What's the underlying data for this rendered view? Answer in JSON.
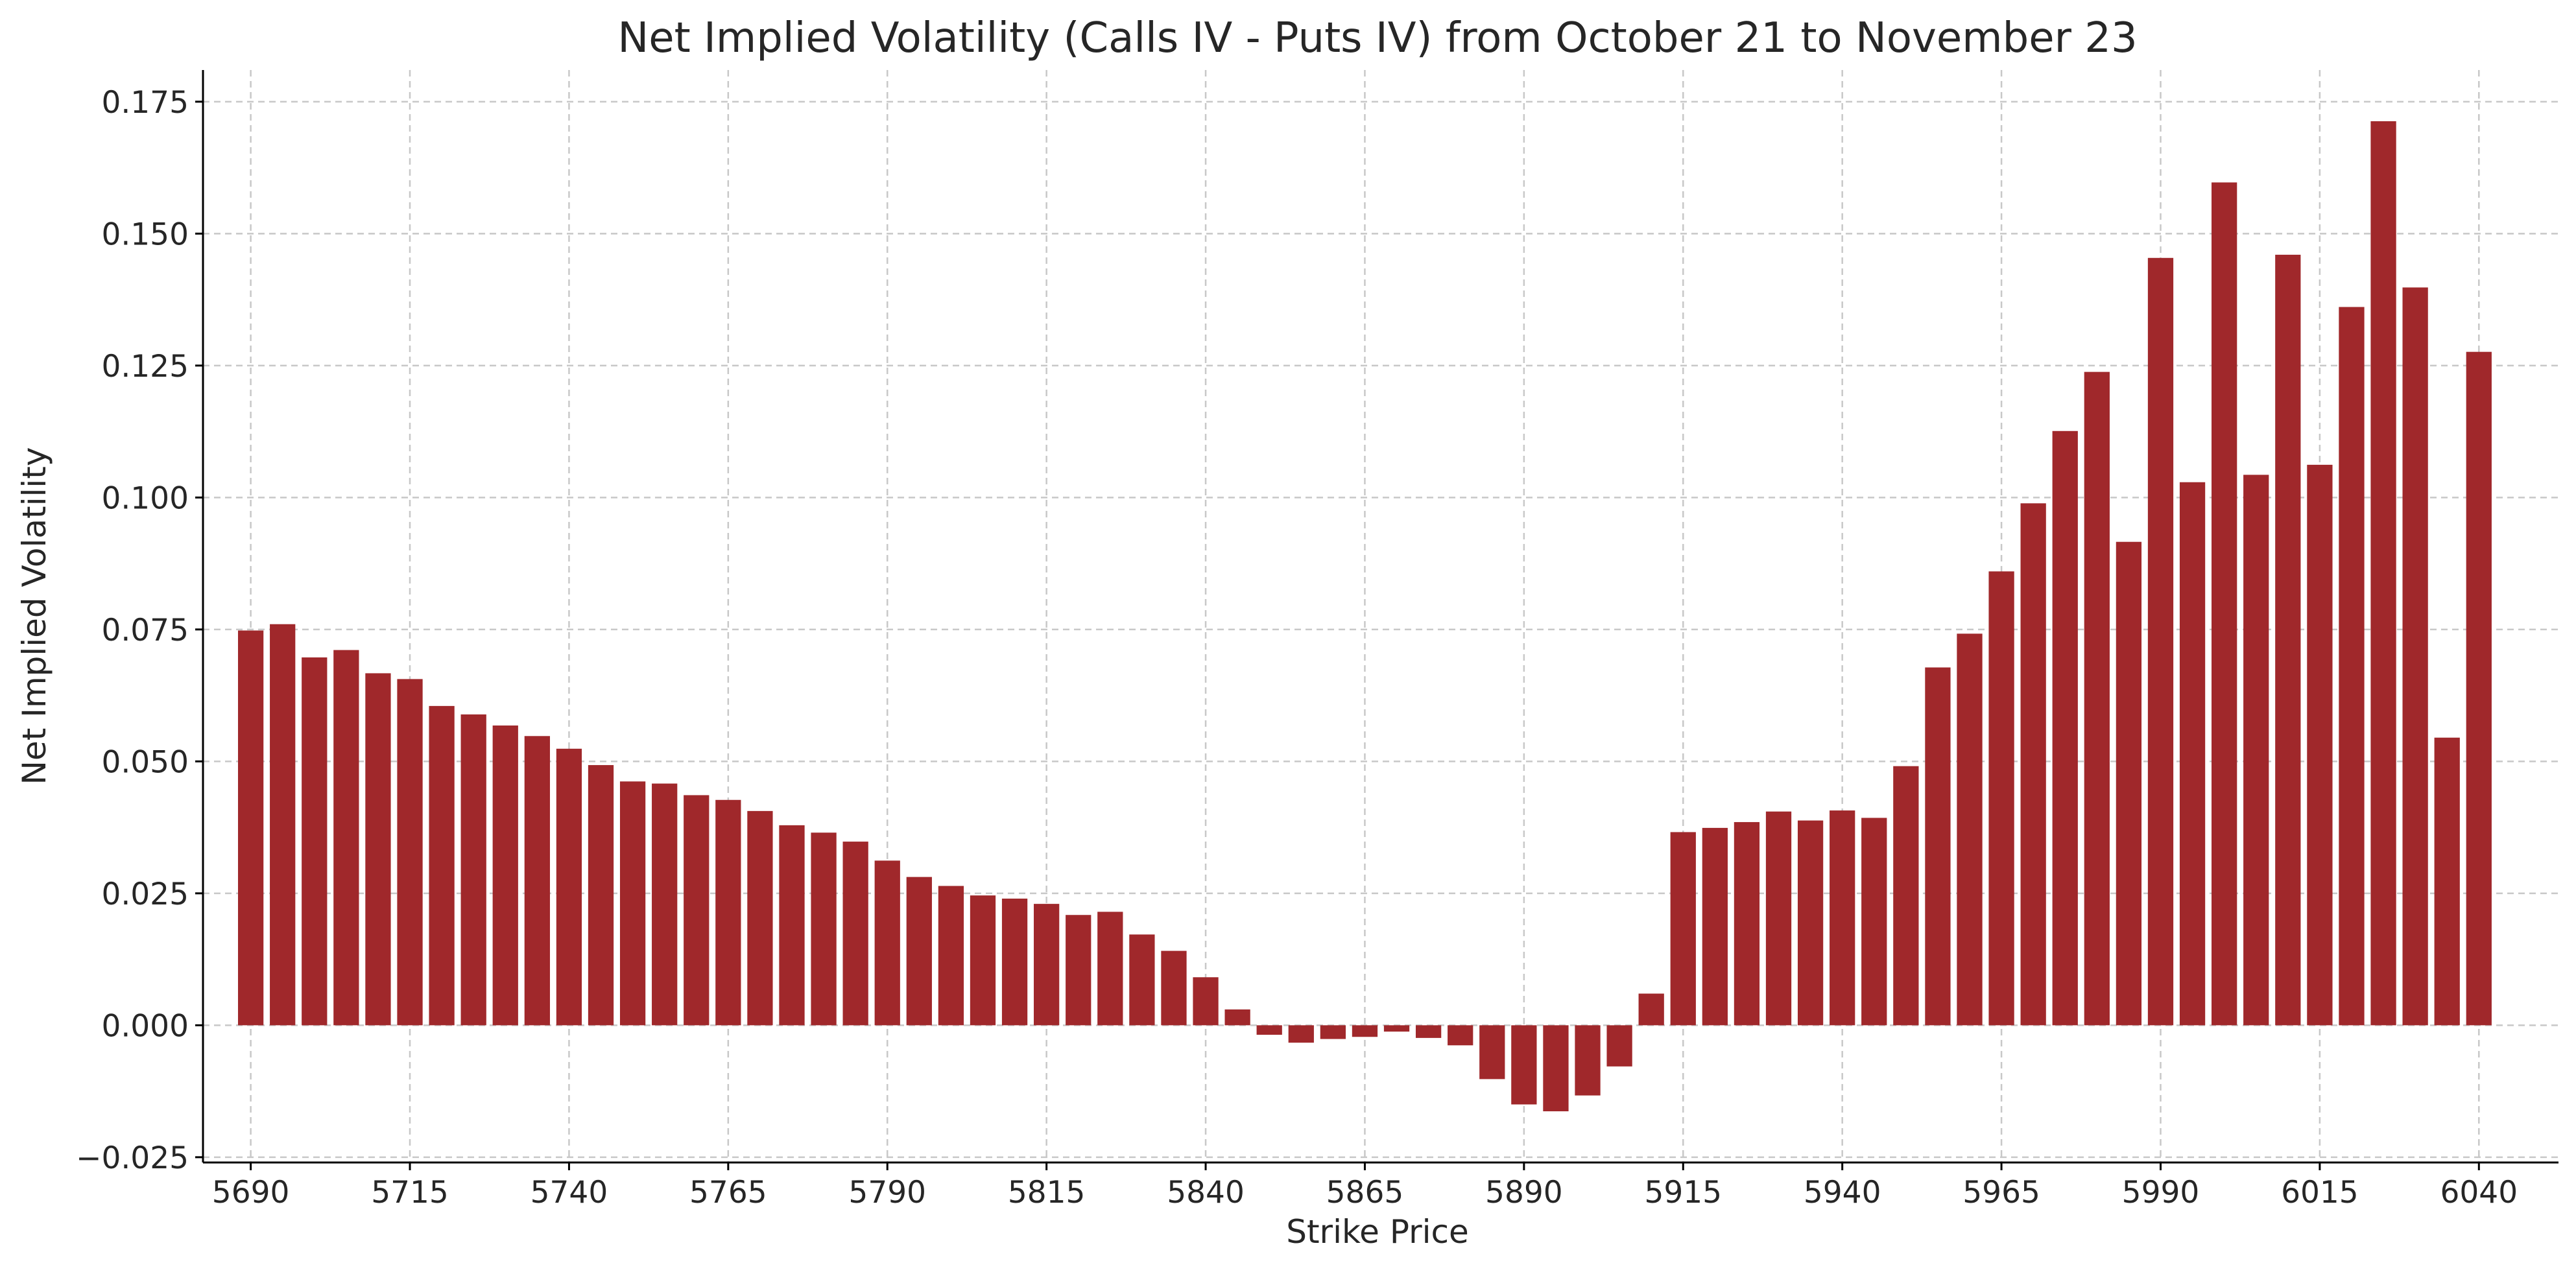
{
  "chart_data": {
    "type": "bar",
    "title": "Net Implied Volatility (Calls IV - Puts IV) from October 21 to November 23",
    "xlabel": "Strike Price",
    "ylabel": "Net Implied Volatility",
    "ylim": [
      -0.026,
      0.181
    ],
    "xlim": [
      5682.5,
      6052.5
    ],
    "x_ticks": [
      "5690",
      "5715",
      "5740",
      "5765",
      "5790",
      "5815",
      "5840",
      "5865",
      "5890",
      "5915",
      "5940",
      "5965",
      "5990",
      "6015",
      "6040"
    ],
    "y_ticks": [
      "−0.025",
      "0.000",
      "0.025",
      "0.050",
      "0.075",
      "0.100",
      "0.125",
      "0.150",
      "0.175"
    ],
    "grid": true,
    "bar_color": "#a0282b",
    "x": [
      5690,
      5695,
      5700,
      5705,
      5710,
      5715,
      5720,
      5725,
      5730,
      5735,
      5740,
      5745,
      5750,
      5755,
      5760,
      5765,
      5770,
      5775,
      5780,
      5785,
      5790,
      5795,
      5800,
      5805,
      5810,
      5815,
      5820,
      5825,
      5830,
      5835,
      5840,
      5845,
      5850,
      5855,
      5860,
      5865,
      5870,
      5875,
      5880,
      5885,
      5890,
      5895,
      5900,
      5905,
      5910,
      5915,
      5920,
      5925,
      5930,
      5935,
      5940,
      5945,
      5950,
      5955,
      5960,
      5965,
      5970,
      5975,
      5980,
      5985,
      5990,
      5995,
      6000,
      6005,
      6010,
      6015,
      6020,
      6025,
      6030,
      6035,
      6040
    ],
    "values": [
      0.0748,
      0.076,
      0.0697,
      0.0711,
      0.0667,
      0.0656,
      0.0605,
      0.0589,
      0.0568,
      0.0548,
      0.0524,
      0.0493,
      0.0462,
      0.0458,
      0.0436,
      0.0427,
      0.0406,
      0.0379,
      0.0365,
      0.0348,
      0.0312,
      0.0281,
      0.0264,
      0.0246,
      0.024,
      0.023,
      0.0209,
      0.0215,
      0.0172,
      0.0141,
      0.0091,
      0.003,
      -0.0018,
      -0.0033,
      -0.0026,
      -0.0022,
      -0.0012,
      -0.0024,
      -0.0038,
      -0.0102,
      -0.015,
      -0.0163,
      -0.0133,
      -0.0078,
      0.006,
      0.0366,
      0.0374,
      0.0385,
      0.0405,
      0.0388,
      0.0407,
      0.0393,
      0.0491,
      0.0678,
      0.0742,
      0.086,
      0.0989,
      0.1126,
      0.1238,
      0.0916,
      0.1454,
      0.1029,
      0.1597,
      0.1043,
      0.146,
      0.1062,
      0.1361,
      0.1713,
      0.1398,
      0.0545,
      0.1276
    ]
  }
}
